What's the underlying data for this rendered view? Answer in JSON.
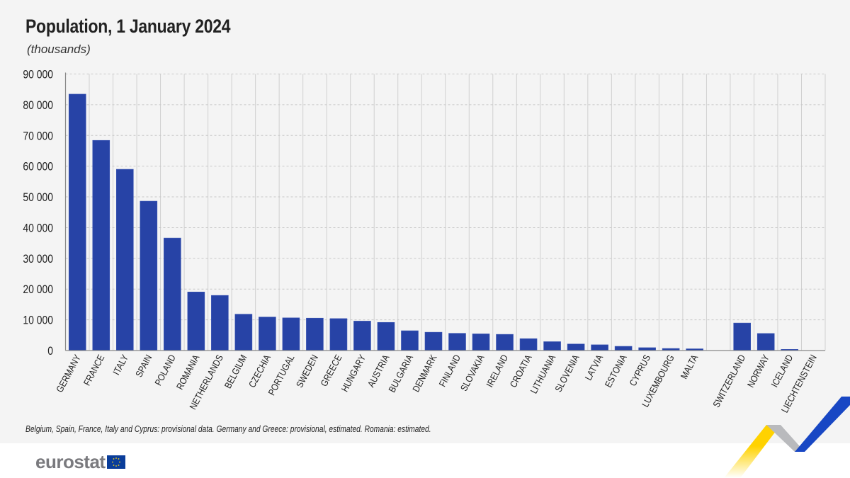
{
  "chart_data": {
    "type": "bar",
    "title": "Population, 1 January 2024",
    "subtitle": "(thousands)",
    "categories": [
      "GERMANY",
      "FRANCE",
      "ITALY",
      "SPAIN",
      "POLAND",
      "ROMANIA",
      "NETHERLANDS",
      "BELGIUM",
      "CZECHIA",
      "PORTUGAL",
      "SWEDEN",
      "GREECE",
      "HUNGARY",
      "AUSTRIA",
      "BULGARIA",
      "DENMARK",
      "FINLAND",
      "SLOVAKIA",
      "IRELAND",
      "CROATIA",
      "LITHUANIA",
      "SLOVENIA",
      "LATVIA",
      "ESTONIA",
      "CYPRUS",
      "LUXEMBOURG",
      "MALTA",
      "",
      "SWITZERLAND",
      "NORWAY",
      "ICELAND",
      "LIECHTENSTEIN"
    ],
    "values": [
      83445,
      68401,
      58990,
      48619,
      36620,
      19064,
      17942,
      11832,
      10900,
      10639,
      10551,
      10398,
      9585,
      9159,
      6445,
      5961,
      5604,
      5424,
      5271,
      3862,
      2886,
      2124,
      1872,
      1374,
      934,
      673,
      563,
      null,
      8962,
      5551,
      384,
      40
    ],
    "ylim": [
      0,
      90000
    ],
    "yticks": [
      "0",
      "10 000",
      "20 000",
      "30 000",
      "40 000",
      "50 000",
      "60 000",
      "70 000",
      "80 000",
      "90 000"
    ],
    "grid": true,
    "bar_color": "#2743a6"
  },
  "footnote": "Belgium, Spain, France, Italy and Cyprus: provisional data. Germany and Greece: provisional, estimated. Romania: estimated.",
  "logo": {
    "text": "eurostat"
  }
}
